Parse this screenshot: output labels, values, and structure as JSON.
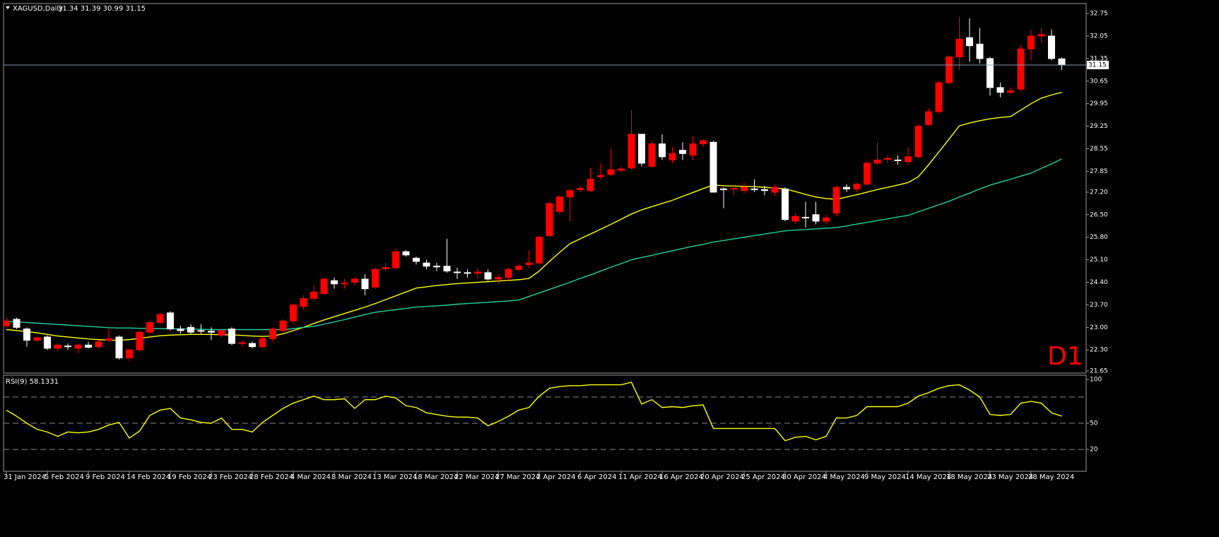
{
  "chart_data": [
    {
      "type": "candlestick",
      "title": "XAGUSD,Daily",
      "subtitle": "31.34 31.39 30.99 31.15",
      "annotation": "D1",
      "annotation_color": "#ff0000",
      "categories": [
        "31 Jan 2024",
        null,
        null,
        null,
        "5 Feb 2024",
        null,
        null,
        null,
        "9 Feb 2024",
        null,
        null,
        null,
        "14 Feb 2024",
        null,
        null,
        null,
        "19 Feb 2024",
        null,
        null,
        null,
        "23 Feb 2024",
        null,
        null,
        null,
        "28 Feb 2024",
        null,
        null,
        null,
        "4 Mar 2024",
        null,
        null,
        null,
        "8 Mar 2024",
        null,
        null,
        null,
        "13 Mar 2024",
        null,
        null,
        null,
        "18 Mar 2024",
        null,
        null,
        null,
        "22 Mar 2024",
        null,
        null,
        null,
        "27 Mar 2024",
        null,
        null,
        null,
        "2 Apr 2024",
        null,
        null,
        null,
        "6 Apr 2024",
        null,
        null,
        null,
        "11 Apr 2024",
        null,
        null,
        null,
        "16 Apr 2024",
        null,
        null,
        null,
        "20 Apr 2024",
        null,
        null,
        null,
        "25 Apr 2024",
        null,
        null,
        null,
        "30 Apr 2024",
        null,
        null,
        null,
        "4 May 2024",
        null,
        null,
        null,
        "9 May 2024",
        null,
        null,
        null,
        "14 May 2024",
        null,
        null,
        null,
        "18 May 2024",
        null,
        null,
        null,
        "23 May 2024",
        null,
        null,
        null,
        "28 May 2024",
        null,
        null,
        null
      ],
      "open": [
        23.05,
        23.25,
        22.95,
        22.6,
        22.7,
        22.35,
        22.42,
        22.35,
        22.45,
        22.4,
        22.6,
        22.7,
        22.05,
        22.3,
        22.85,
        23.15,
        23.45,
        22.95,
        23.0,
        22.9,
        22.88,
        22.75,
        22.95,
        22.5,
        22.5,
        22.4,
        22.65,
        22.9,
        23.2,
        23.65,
        23.9,
        24.05,
        24.45,
        24.35,
        24.4,
        24.5,
        24.25,
        24.82,
        24.85,
        25.35,
        25.15,
        25.0,
        24.9,
        24.9,
        24.72,
        24.7,
        24.68,
        24.7,
        24.5,
        24.55,
        24.8,
        24.95,
        25.0,
        25.85,
        26.6,
        27.05,
        27.28,
        27.25,
        27.68,
        27.75,
        27.88,
        27.95,
        29.0,
        28.0,
        28.7,
        28.2,
        28.5,
        28.35,
        28.7,
        28.75,
        27.3,
        27.3,
        27.25,
        27.3,
        27.28,
        27.2,
        27.3,
        26.3,
        26.42,
        26.5,
        26.3,
        26.55,
        27.35,
        27.3,
        27.45,
        28.1,
        28.22,
        28.2,
        28.15,
        28.3,
        29.3,
        29.7,
        30.6,
        31.4,
        32.0,
        31.8,
        31.35,
        30.45,
        30.3,
        30.4,
        31.65,
        32.05,
        32.05,
        31.34
      ],
      "high": [
        23.3,
        23.3,
        23.0,
        22.7,
        22.75,
        22.5,
        22.5,
        22.5,
        22.55,
        22.6,
        22.95,
        22.75,
        22.35,
        22.9,
        23.2,
        23.45,
        23.5,
        23.05,
        23.1,
        23.1,
        23.0,
        22.95,
        23.0,
        22.6,
        22.55,
        22.7,
        23.0,
        23.25,
        23.75,
        24.0,
        24.3,
        24.55,
        24.55,
        24.5,
        24.55,
        24.65,
        24.85,
        25.0,
        25.45,
        25.4,
        25.2,
        25.1,
        25.0,
        25.75,
        24.85,
        24.8,
        24.85,
        24.8,
        24.65,
        24.85,
        24.95,
        25.4,
        25.85,
        26.9,
        27.1,
        27.3,
        27.4,
        27.95,
        28.1,
        28.55,
        28.0,
        29.75,
        29.0,
        28.8,
        29.0,
        28.6,
        28.75,
        28.95,
        28.85,
        28.8,
        27.35,
        27.45,
        27.5,
        27.6,
        27.4,
        27.45,
        27.35,
        26.55,
        26.9,
        26.9,
        26.5,
        27.4,
        27.45,
        27.5,
        28.15,
        28.75,
        28.35,
        28.35,
        28.6,
        29.3,
        29.8,
        30.65,
        31.45,
        32.65,
        32.6,
        32.3,
        31.4,
        30.6,
        30.45,
        31.75,
        32.25,
        32.3,
        32.25,
        31.39
      ],
      "low": [
        22.95,
        22.95,
        22.4,
        22.55,
        22.3,
        22.25,
        22.3,
        22.2,
        22.35,
        22.35,
        22.55,
        22.0,
        21.95,
        22.25,
        22.8,
        23.1,
        22.9,
        22.8,
        22.8,
        22.8,
        22.6,
        22.7,
        22.45,
        22.4,
        22.35,
        22.35,
        22.55,
        22.85,
        23.1,
        23.55,
        23.8,
        24.0,
        24.2,
        24.2,
        24.3,
        24.0,
        24.2,
        24.75,
        24.8,
        25.2,
        24.95,
        24.8,
        24.75,
        24.7,
        24.5,
        24.55,
        24.5,
        24.45,
        24.35,
        24.45,
        24.75,
        24.85,
        24.95,
        25.8,
        26.5,
        26.3,
        27.2,
        27.2,
        27.6,
        27.7,
        27.8,
        27.9,
        28.0,
        27.95,
        28.2,
        28.1,
        28.2,
        28.2,
        28.6,
        27.2,
        26.7,
        27.1,
        27.15,
        27.2,
        27.1,
        27.1,
        26.3,
        26.2,
        26.1,
        26.2,
        26.2,
        26.45,
        27.2,
        27.2,
        27.4,
        28.05,
        28.1,
        28.05,
        28.05,
        28.25,
        29.25,
        29.65,
        30.55,
        31.0,
        31.25,
        31.2,
        30.2,
        30.15,
        30.25,
        30.35,
        31.3,
        31.85,
        31.3,
        30.99
      ],
      "close": [
        23.2,
        23.0,
        22.6,
        22.68,
        22.35,
        22.45,
        22.4,
        22.45,
        22.38,
        22.55,
        22.65,
        22.05,
        22.3,
        22.85,
        23.15,
        23.4,
        22.95,
        22.9,
        22.85,
        22.88,
        22.85,
        22.9,
        22.5,
        22.52,
        22.4,
        22.65,
        22.95,
        23.2,
        23.7,
        23.9,
        24.1,
        24.5,
        24.35,
        24.37,
        24.5,
        24.2,
        24.8,
        24.86,
        25.35,
        25.25,
        25.05,
        24.9,
        24.88,
        24.75,
        24.7,
        24.68,
        24.72,
        24.5,
        24.55,
        24.8,
        24.9,
        25.0,
        25.8,
        26.85,
        27.05,
        27.25,
        27.32,
        27.6,
        27.72,
        27.9,
        27.92,
        29.0,
        28.1,
        28.7,
        28.3,
        28.4,
        28.4,
        28.7,
        28.8,
        27.2,
        27.28,
        27.32,
        27.35,
        27.28,
        27.25,
        27.35,
        26.35,
        26.45,
        26.4,
        26.3,
        26.4,
        27.35,
        27.3,
        27.45,
        28.1,
        28.2,
        28.25,
        28.18,
        28.3,
        29.25,
        29.7,
        30.6,
        31.4,
        31.95,
        31.75,
        31.35,
        30.45,
        30.3,
        30.35,
        31.65,
        32.05,
        32.1,
        31.35,
        31.15
      ],
      "up_color": "#ff0000",
      "down_color": "#ffffff",
      "lines": [
        {
          "color": "#ffff00",
          "values": [
            22.93,
            22.9,
            22.87,
            22.83,
            22.78,
            22.73,
            22.7,
            22.67,
            22.64,
            22.62,
            22.6,
            22.6,
            22.62,
            22.66,
            22.7,
            22.74,
            22.76,
            22.77,
            22.78,
            22.78,
            22.78,
            22.77,
            22.77,
            22.75,
            22.73,
            22.72,
            22.73,
            22.8,
            22.9,
            23.0,
            23.12,
            23.23,
            23.33,
            23.43,
            23.53,
            23.63,
            23.74,
            23.86,
            23.98,
            24.1,
            24.22,
            24.26,
            24.3,
            24.33,
            24.36,
            24.38,
            24.4,
            24.42,
            24.44,
            24.46,
            24.48,
            24.52,
            24.75,
            25.05,
            25.33,
            25.6,
            25.75,
            25.9,
            26.05,
            26.2,
            26.36,
            26.52,
            26.65,
            26.75,
            26.85,
            26.95,
            27.07,
            27.19,
            27.31,
            27.42,
            27.4,
            27.39,
            27.38,
            27.37,
            27.35,
            27.33,
            27.3,
            27.22,
            27.13,
            27.05,
            27.0,
            26.98,
            27.05,
            27.12,
            27.2,
            27.28,
            27.35,
            27.42,
            27.5,
            27.68,
            28.05,
            28.45,
            28.85,
            29.26,
            29.35,
            29.42,
            29.48,
            29.52,
            29.55,
            29.75,
            29.95,
            30.12,
            30.22,
            30.3
          ]
        },
        {
          "color": "#20d0a0",
          "values": [
            23.19,
            23.17,
            23.15,
            23.13,
            23.11,
            23.09,
            23.07,
            23.05,
            23.03,
            23.01,
            22.99,
            22.98,
            22.98,
            22.97,
            22.97,
            22.96,
            22.96,
            22.95,
            22.95,
            22.94,
            22.93,
            22.93,
            22.93,
            22.93,
            22.93,
            22.93,
            22.93,
            22.93,
            22.96,
            23.0,
            23.03,
            23.1,
            23.17,
            23.24,
            23.32,
            23.4,
            23.47,
            23.51,
            23.55,
            23.59,
            23.63,
            23.65,
            23.67,
            23.69,
            23.72,
            23.74,
            23.76,
            23.78,
            23.8,
            23.82,
            23.85,
            23.96,
            24.07,
            24.18,
            24.29,
            24.4,
            24.52,
            24.63,
            24.75,
            24.87,
            24.98,
            25.1,
            25.17,
            25.24,
            25.31,
            25.38,
            25.45,
            25.52,
            25.58,
            25.65,
            25.7,
            25.75,
            25.8,
            25.85,
            25.9,
            25.95,
            26.0,
            26.02,
            26.04,
            26.06,
            26.08,
            26.1,
            26.15,
            26.21,
            26.26,
            26.32,
            26.37,
            26.43,
            26.48,
            26.59,
            26.7,
            26.81,
            26.92,
            27.05,
            27.17,
            27.3,
            27.42,
            27.51,
            27.6,
            27.7,
            27.79,
            27.94,
            28.08,
            28.23
          ]
        }
      ],
      "last_price": 31.15,
      "ylim": [
        21.58,
        33.06
      ],
      "yticks": [
        32.75,
        32.05,
        31.35,
        30.65,
        29.95,
        29.25,
        28.55,
        27.85,
        {
          "value": 27.2,
          "label": "27.20"
        },
        {
          "value": 26.5,
          "label": "26.50"
        },
        {
          "value": 25.8,
          "label": "25.80"
        },
        {
          "value": 25.1,
          "label": "25.10"
        },
        {
          "value": 24.4,
          "label": "24.40"
        },
        {
          "value": 23.7,
          "label": "23.70"
        },
        {
          "value": 23,
          "label": "23.00"
        },
        {
          "value": 22.3,
          "label": "22.30"
        },
        21.65
      ],
      "grid": false
    },
    {
      "type": "line",
      "title": "RSI(9) 58.1331",
      "color": "#ffff00",
      "values": [
        65,
        58,
        50,
        43,
        40,
        35,
        40,
        39,
        40,
        43,
        48,
        51,
        33,
        41,
        59,
        65,
        67,
        56,
        54,
        51,
        50,
        56,
        43,
        43,
        40,
        51,
        59,
        67,
        73,
        77,
        81,
        77,
        77,
        78,
        67,
        77,
        77,
        81,
        79,
        70,
        68,
        62,
        60,
        58,
        57,
        57,
        56,
        47,
        52,
        58,
        65,
        68,
        81,
        90,
        92,
        93,
        93,
        94,
        94,
        94,
        94,
        97,
        72,
        77,
        68,
        69,
        68,
        70,
        71,
        44,
        44,
        44,
        44,
        44,
        44,
        44,
        30,
        34,
        35,
        31,
        35,
        56,
        56,
        59,
        69,
        69,
        69,
        69,
        73,
        81,
        85,
        90,
        93,
        94,
        88,
        80,
        60,
        59,
        60,
        73,
        75,
        73,
        62,
        58.13
      ],
      "ylim": [
        -5,
        105
      ],
      "yticks": [
        100,
        50,
        20
      ],
      "levels": [
        80,
        50,
        20
      ],
      "grid": false
    }
  ]
}
